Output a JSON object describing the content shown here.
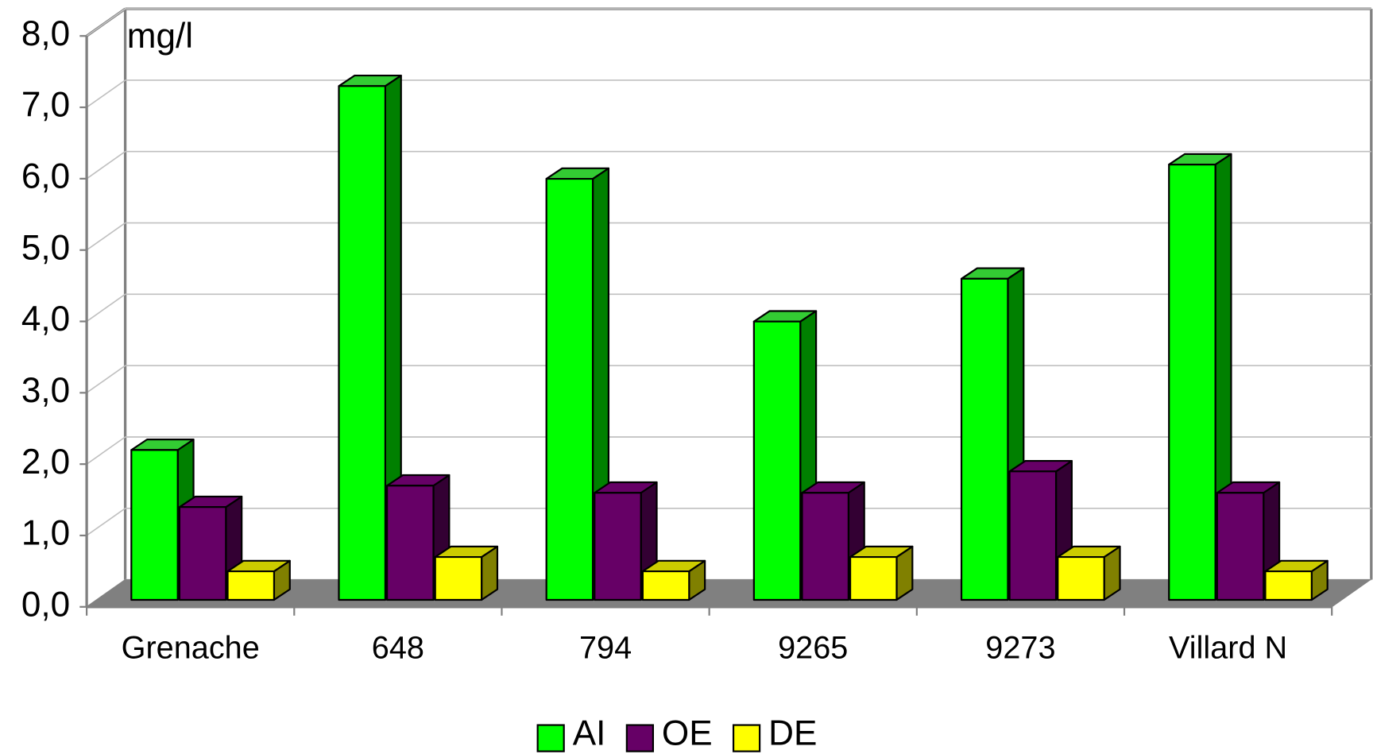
{
  "chart_data": {
    "type": "bar3d",
    "y_label": "mg/l",
    "categories": [
      "Grenache",
      "648",
      "794",
      "9265",
      "9273",
      "Villard N"
    ],
    "series": [
      {
        "name": "AI",
        "color": "#00ff00",
        "values": [
          2.1,
          7.2,
          5.9,
          3.9,
          4.5,
          6.1
        ]
      },
      {
        "name": "OE",
        "color": "#660066",
        "values": [
          1.3,
          1.6,
          1.5,
          1.5,
          1.8,
          1.5
        ]
      },
      {
        "name": "DE",
        "color": "#ffff00",
        "values": [
          0.4,
          0.6,
          0.4,
          0.6,
          0.6,
          0.4
        ]
      }
    ],
    "ylim": [
      0,
      8
    ],
    "yticks": [
      {
        "value": 0,
        "label": "0,0"
      },
      {
        "value": 1,
        "label": "1,0"
      },
      {
        "value": 2,
        "label": "2,0"
      },
      {
        "value": 3,
        "label": "3,0"
      },
      {
        "value": 4,
        "label": "4,0"
      },
      {
        "value": 5,
        "label": "5,0"
      },
      {
        "value": 6,
        "label": "6,0"
      },
      {
        "value": 7,
        "label": "7,0"
      },
      {
        "value": 8,
        "label": "8,0"
      }
    ],
    "grid": true
  }
}
